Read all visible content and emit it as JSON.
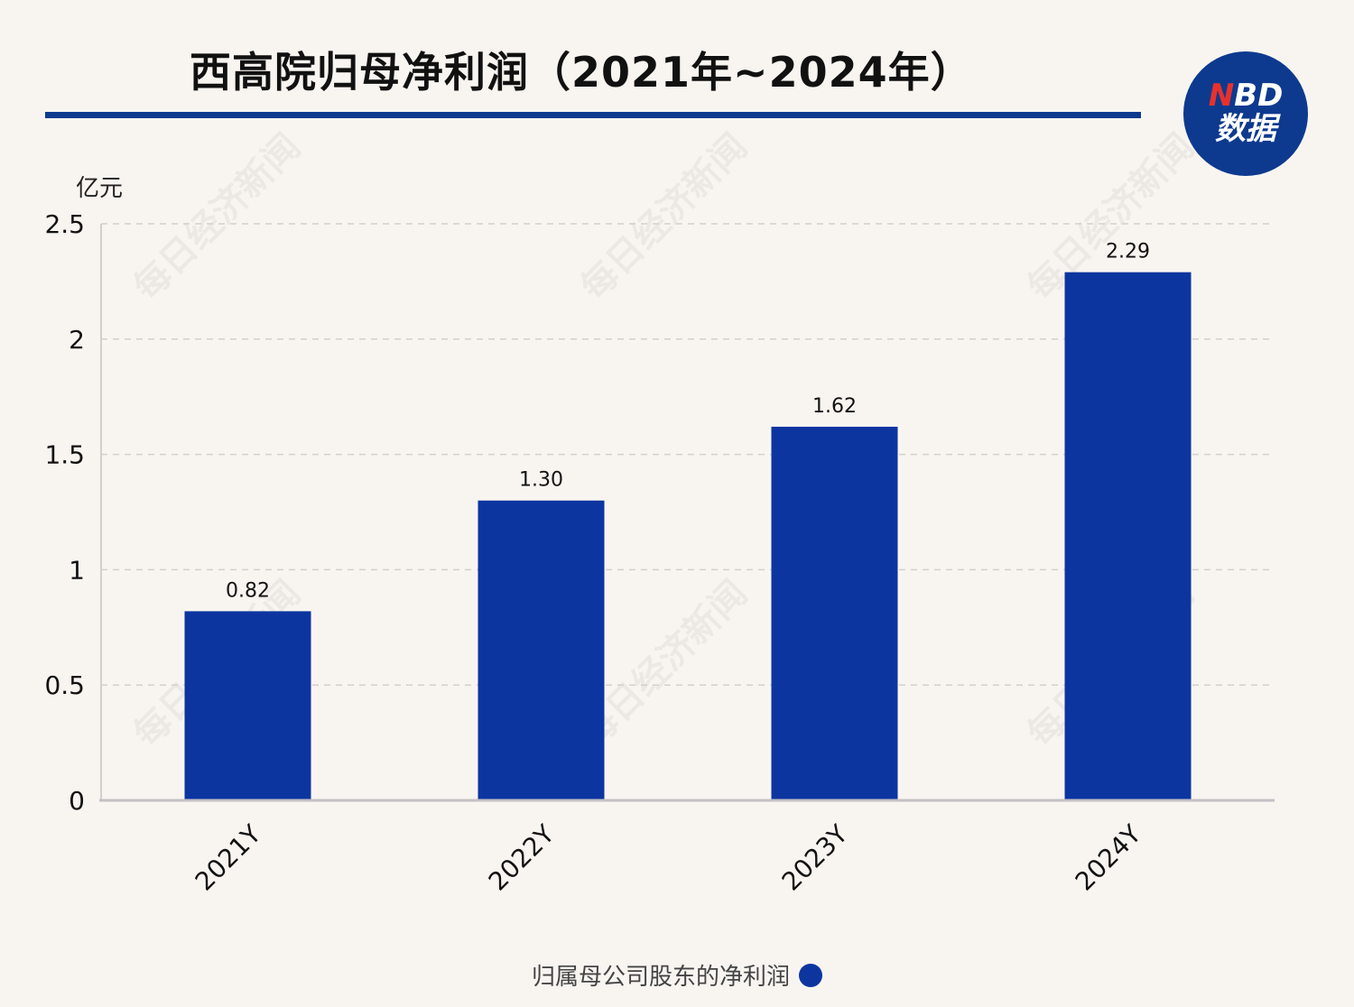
{
  "header": {
    "title": "西高院归母净利润（2021年~2024年）",
    "logo_brand_n": "N",
    "logo_brand_rest": "BD",
    "logo_sub": "数据"
  },
  "watermark": "每日经济新闻",
  "chart_data": {
    "type": "bar",
    "title": "西高院归母净利润（2021年~2024年）",
    "unit": "亿元",
    "categories": [
      "2021Y",
      "2022Y",
      "2023Y",
      "2024Y"
    ],
    "series": [
      {
        "name": "归属母公司股东的净利润",
        "values": [
          0.82,
          1.3,
          1.62,
          2.29
        ],
        "labels": [
          "0.82",
          "1.30",
          "1.62",
          "2.29"
        ],
        "color": "#0d35a0"
      }
    ],
    "ylim": [
      0,
      2.5
    ],
    "yticks": [
      0,
      0.5,
      1,
      1.5,
      2,
      2.5
    ],
    "ytick_labels": [
      "0",
      "0.5",
      "1",
      "1.5",
      "2",
      "2.5"
    ],
    "grid": "dashed-horizontal",
    "legend": "bottom-center",
    "colors": {
      "bar": "#0d35a0",
      "accent": "#0d3a8f"
    }
  }
}
